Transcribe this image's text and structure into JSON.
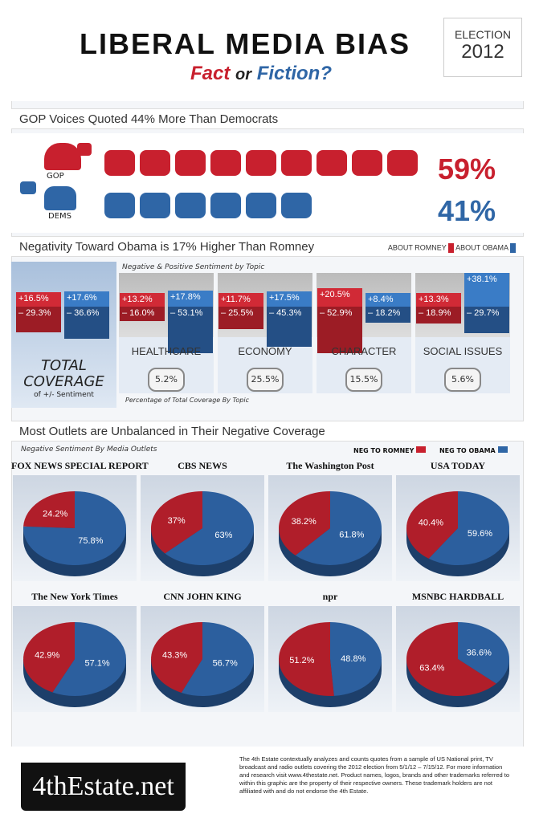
{
  "header": {
    "title": "LIBERAL MEDIA BIAS",
    "fact": "Fact",
    "or": "or",
    "fiction": "Fiction?",
    "election_label": "ELECTION",
    "election_year": "2012"
  },
  "section1": {
    "heading": "GOP Voices Quoted 44% More Than Democrats",
    "gop_label": "GOP",
    "dems_label": "DEMS",
    "gop_pct": "59%",
    "dems_pct": "41%",
    "gop_bubbles": 9,
    "dems_bubbles": 6
  },
  "section2": {
    "heading": "Negativity Toward Obama is 17% Higher Than Romney",
    "legend_romney": "ABOUT ROMNEY",
    "legend_obama": "ABOUT OBAMA",
    "subtitle": "Negative & Positive Sentiment by Topic",
    "footer_label": "Percentage of Total Coverage By Topic",
    "total": {
      "title1": "TOTAL",
      "title2": "COVERAGE",
      "sub": "of +/- Sentiment",
      "romney_pos": "+16.5%",
      "romney_neg": "– 29.3%",
      "obama_pos": "+17.6%",
      "obama_neg": "– 36.6%"
    },
    "topics": [
      {
        "name": "HEALTHCARE",
        "share": "5.2%",
        "romney_pos": "+13.2%",
        "romney_neg": "– 16.0%",
        "obama_pos": "+17.8%",
        "obama_neg": "– 53.1%"
      },
      {
        "name": "ECONOMY",
        "share": "25.5%",
        "romney_pos": "+11.7%",
        "romney_neg": "– 25.5%",
        "obama_pos": "+17.5%",
        "obama_neg": "– 45.3%"
      },
      {
        "name": "CHARACTER",
        "share": "15.5%",
        "romney_pos": "+20.5%",
        "romney_neg": "– 52.9%",
        "obama_pos": "+8.4%",
        "obama_neg": "– 18.2%"
      },
      {
        "name": "SOCIAL ISSUES",
        "share": "5.6%",
        "romney_pos": "+13.3%",
        "romney_neg": "– 18.9%",
        "obama_pos": "+38.1%",
        "obama_neg": "– 29.7%"
      }
    ]
  },
  "section3": {
    "heading": "Most Outlets are Unbalanced in Their Negative Coverage",
    "subtitle": "Negative Sentiment By Media Outlets",
    "legend_romney": "NEG TO ROMNEY",
    "legend_obama": "NEG TO OBAMA"
  },
  "chart_data": {
    "type": "pie",
    "title": "Negative Sentiment By Media Outlets",
    "legend": [
      "NEG TO ROMNEY",
      "NEG TO OBAMA"
    ],
    "colors": {
      "romney": "#b01e2a",
      "obama": "#2c5f9e"
    },
    "outlets": [
      {
        "name": "FOX NEWS SPECIAL REPORT",
        "romney": 24.2,
        "obama": 75.8
      },
      {
        "name": "CBS NEWS",
        "romney": 37,
        "obama": 63
      },
      {
        "name": "The Washington Post",
        "romney": 38.2,
        "obama": 61.8
      },
      {
        "name": "USA TODAY",
        "romney": 40.4,
        "obama": 59.6
      },
      {
        "name": "The New York Times",
        "romney": 42.9,
        "obama": 57.1
      },
      {
        "name": "CNN JOHN KING",
        "romney": 43.3,
        "obama": 56.7
      },
      {
        "name": "npr",
        "romney": 51.2,
        "obama": 48.8
      },
      {
        "name": "MSNBC HARDBALL",
        "romney": 63.4,
        "obama": 36.6
      }
    ]
  },
  "footer": {
    "logo": "4thEstate.net",
    "text": "The 4th Estate contextually analyzes and counts quotes from a sample of US National print, TV broadcast and radio outlets covering the 2012 election from 5/1/12 – 7/15/12. For more information and research visit www.4thestate.net.  Product names, logos, brands and other trademarks referred to within this graphic are the property of their respective owners. These trademark holders are not affiliated with and do not endorse the 4th Estate."
  }
}
